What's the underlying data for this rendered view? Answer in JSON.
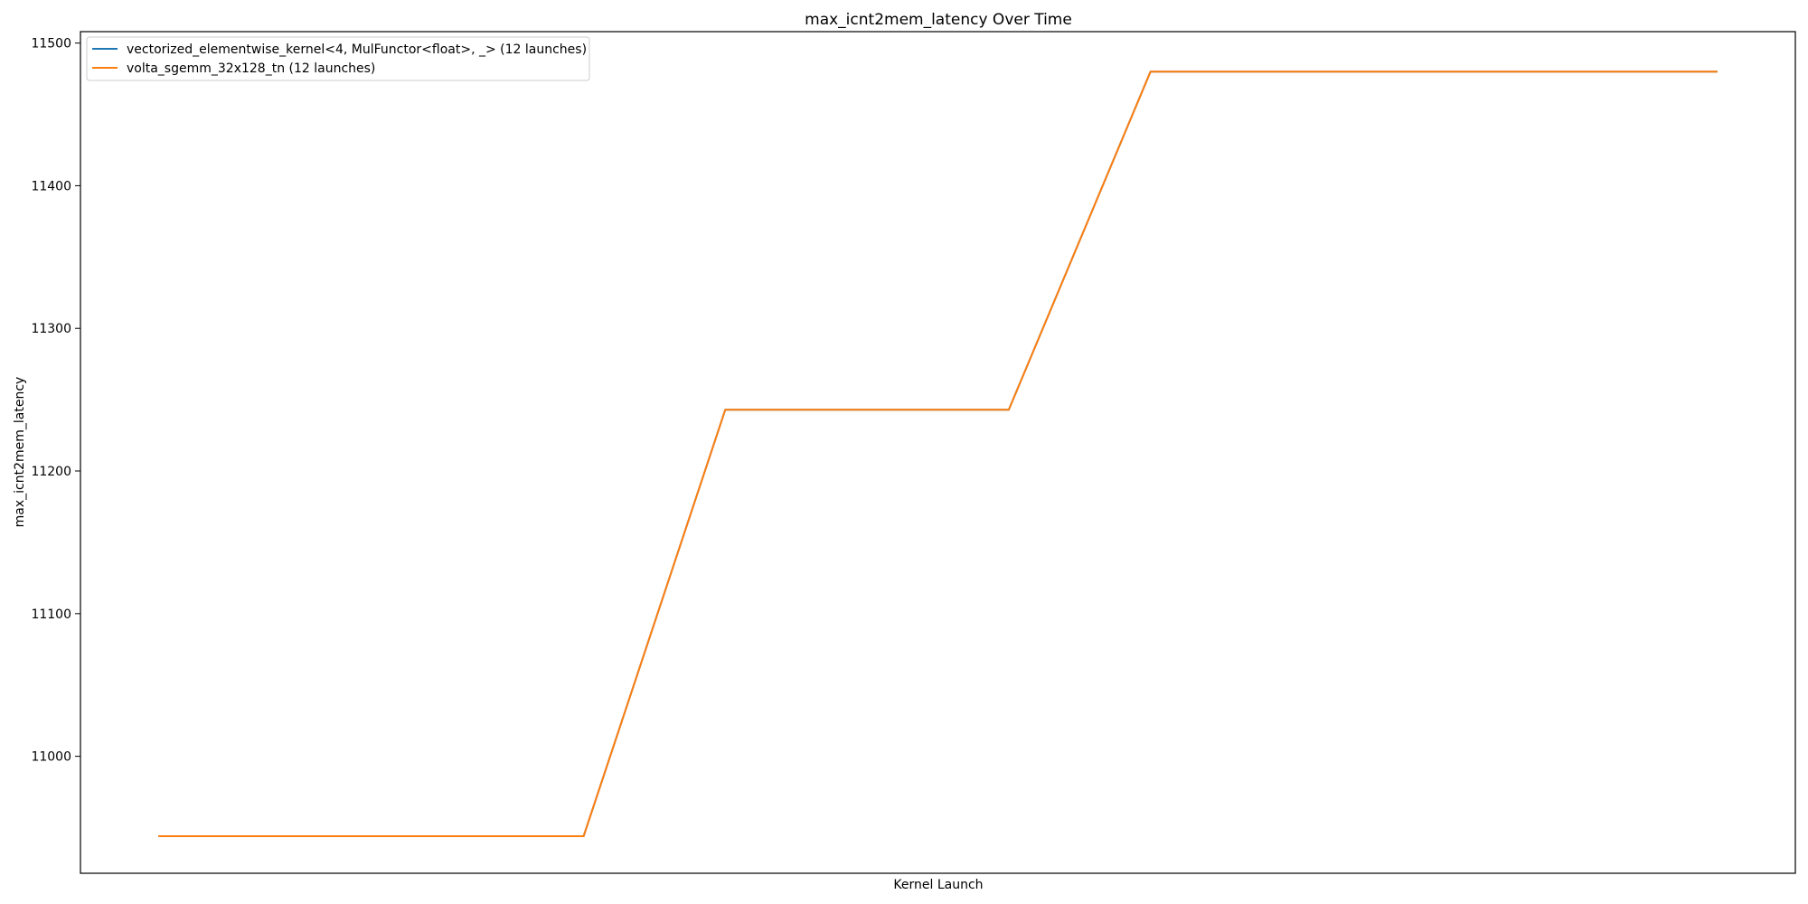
{
  "chart_data": {
    "type": "line",
    "title": "max_icnt2mem_latency Over Time",
    "xlabel": "Kernel Launch",
    "ylabel": "max_icnt2mem_latency",
    "x": [
      0,
      1,
      2,
      3,
      4,
      5,
      6,
      7,
      8,
      9,
      10,
      11
    ],
    "ylim": [
      10918,
      11508
    ],
    "xlim": [
      -0.55,
      11.55
    ],
    "yticks": [
      11000,
      11100,
      11200,
      11300,
      11400,
      11500
    ],
    "grid": false,
    "legend_position": "upper-left",
    "series": [
      {
        "name": "vectorized_elementwise_kernel<4, MulFunctor<float>, _> (12 launches)",
        "color": "#1f77b4",
        "values": [
          10944,
          10944,
          10944,
          10944,
          11243,
          11243,
          11243,
          11480,
          11480,
          11480,
          11480,
          11480
        ]
      },
      {
        "name": "volta_sgemm_32x128_tn (12 launches)",
        "color": "#ff7f0e",
        "values": [
          10944,
          10944,
          10944,
          10944,
          11243,
          11243,
          11243,
          11480,
          11480,
          11480,
          11480,
          11480
        ]
      }
    ]
  }
}
